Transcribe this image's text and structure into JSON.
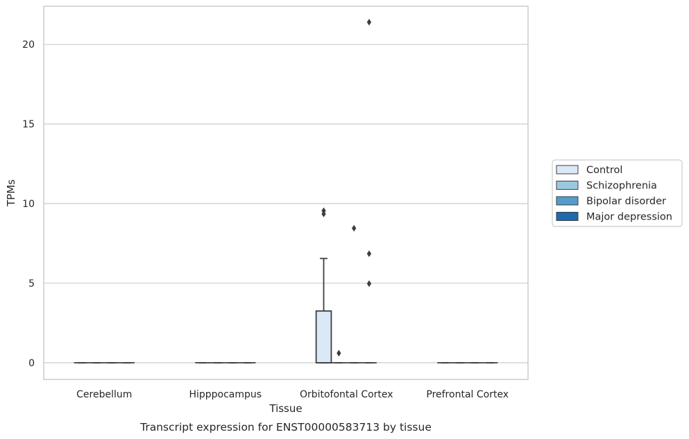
{
  "chart_data": {
    "type": "box",
    "title": "",
    "caption": "Transcript expression for ENST00000583713 by tissue",
    "xlabel": "Tissue",
    "ylabel": "TPMs",
    "ylim": [
      -1.05,
      22.4
    ],
    "yticks": [
      0,
      5,
      10,
      15,
      20
    ],
    "grid": "horizontal",
    "legend_position": "right",
    "categories": [
      "Cerebellum",
      "Hipppocampus",
      "Orbitofontal Cortex",
      "Prefrontal Cortex"
    ],
    "series": [
      {
        "name": "Control",
        "color": "#dbe9f6",
        "boxes": [
          {
            "min": 0,
            "q1": 0,
            "median": 0,
            "q3": 0,
            "max": 0,
            "outliers": []
          },
          {
            "min": 0,
            "q1": 0,
            "median": 0,
            "q3": 0,
            "max": 0,
            "outliers": []
          },
          {
            "min": 0,
            "q1": 0,
            "median": 0,
            "q3": 3.25,
            "max": 6.55,
            "outliers": [
              9.55,
              9.35
            ]
          },
          {
            "min": 0,
            "q1": 0,
            "median": 0,
            "q3": 0,
            "max": 0,
            "outliers": []
          }
        ]
      },
      {
        "name": "Schizophrenia",
        "color": "#9ac8e0",
        "boxes": [
          {
            "min": 0,
            "q1": 0,
            "median": 0,
            "q3": 0,
            "max": 0,
            "outliers": []
          },
          {
            "min": 0,
            "q1": 0,
            "median": 0,
            "q3": 0,
            "max": 0,
            "outliers": []
          },
          {
            "min": 0,
            "q1": 0,
            "median": 0,
            "q3": 0,
            "max": 0,
            "outliers": [
              0.6
            ]
          },
          {
            "min": 0,
            "q1": 0,
            "median": 0,
            "q3": 0,
            "max": 0,
            "outliers": []
          }
        ]
      },
      {
        "name": "Bipolar disorder",
        "color": "#529dcc",
        "boxes": [
          {
            "min": 0,
            "q1": 0,
            "median": 0,
            "q3": 0,
            "max": 0,
            "outliers": []
          },
          {
            "min": 0,
            "q1": 0,
            "median": 0,
            "q3": 0,
            "max": 0,
            "outliers": []
          },
          {
            "min": 0,
            "q1": 0,
            "median": 0,
            "q3": 0,
            "max": 0,
            "outliers": [
              8.45
            ]
          },
          {
            "min": 0,
            "q1": 0,
            "median": 0,
            "q3": 0,
            "max": 0,
            "outliers": []
          }
        ]
      },
      {
        "name": "Major depression",
        "color": "#1c6aaf",
        "boxes": [
          {
            "min": 0,
            "q1": 0,
            "median": 0,
            "q3": 0,
            "max": 0,
            "outliers": []
          },
          {
            "min": 0,
            "q1": 0,
            "median": 0,
            "q3": 0,
            "max": 0,
            "outliers": []
          },
          {
            "min": 0,
            "q1": 0,
            "median": 0,
            "q3": 0,
            "max": 0,
            "outliers": [
              21.4,
              6.85,
              4.97
            ]
          },
          {
            "min": 0,
            "q1": 0,
            "median": 0,
            "q3": 0,
            "max": 0,
            "outliers": []
          }
        ]
      }
    ]
  }
}
